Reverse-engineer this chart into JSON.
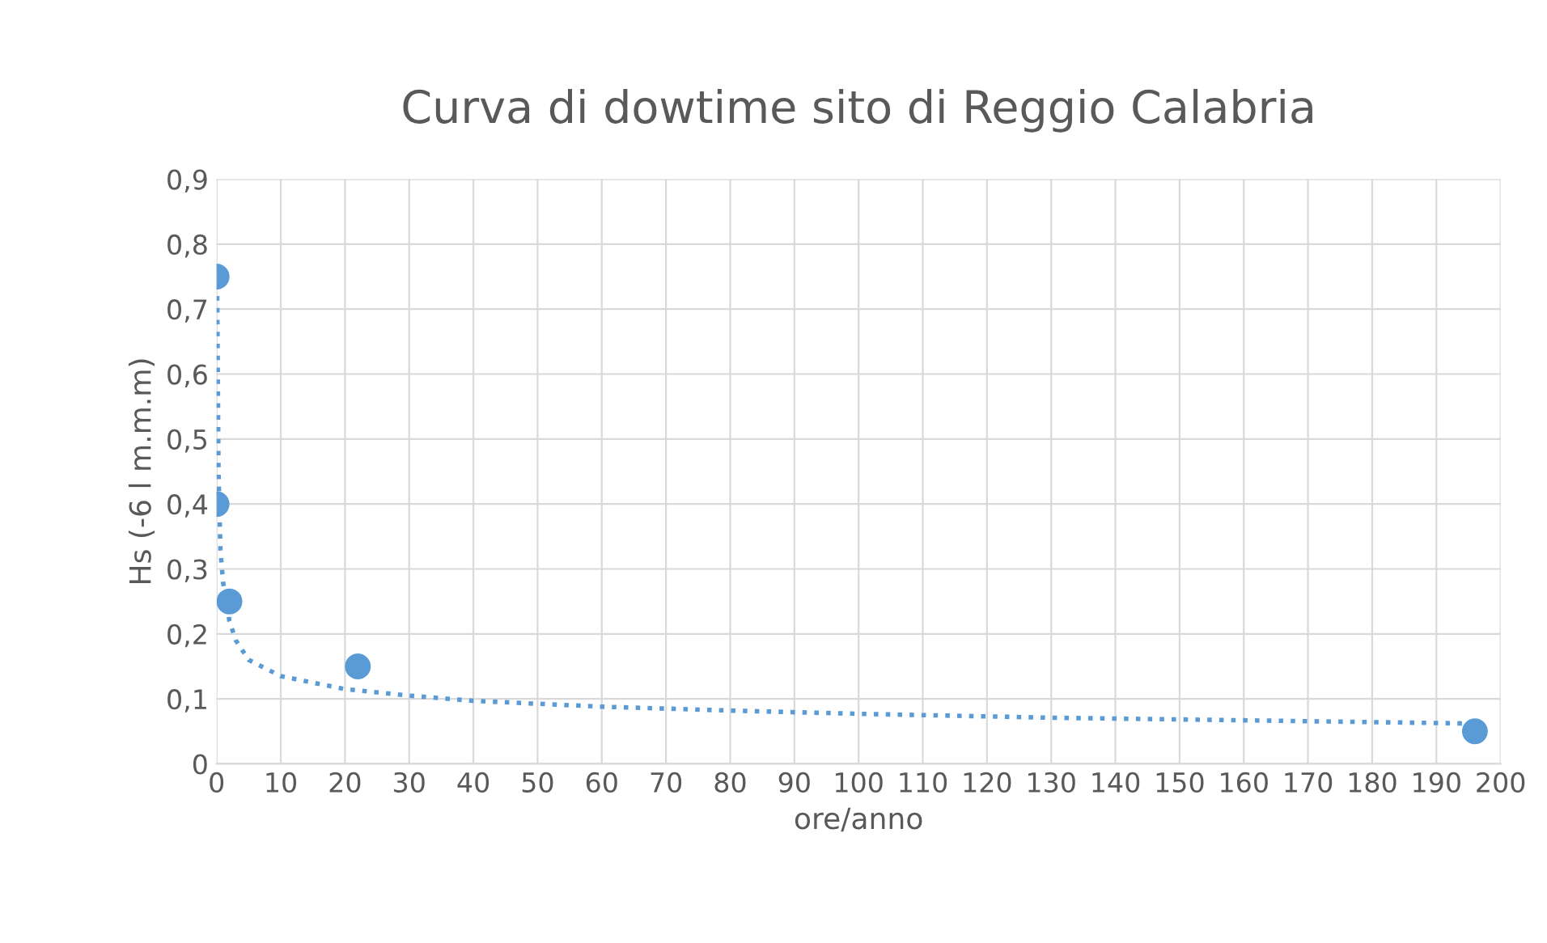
{
  "chart_data": {
    "type": "scatter",
    "title": "Curva di dowtime sito di Reggio Calabria",
    "xlabel": "ore/anno",
    "ylabel": "Hs (-6 l m.m.m)",
    "x": [
      0,
      0,
      2,
      22,
      196
    ],
    "series": [
      {
        "color": "#5b9bd5",
        "marker": "circle",
        "values": [
          0.75,
          0.4,
          0.25,
          0.15,
          0.05
        ]
      },
      {
        "type": "line",
        "color": "#5b9bd5",
        "line_style": "dotted",
        "marker": "none",
        "x": [
          0.1,
          0.3,
          0.6,
          1,
          2,
          3,
          5,
          10,
          20,
          30,
          40,
          60,
          80,
          100,
          130,
          160,
          196
        ],
        "values": [
          0.72,
          0.45,
          0.33,
          0.28,
          0.22,
          0.19,
          0.16,
          0.135,
          0.115,
          0.105,
          0.097,
          0.088,
          0.082,
          0.077,
          0.071,
          0.067,
          0.062
        ]
      }
    ],
    "xlim": [
      0,
      200
    ],
    "xticks": [
      0,
      10,
      20,
      30,
      40,
      50,
      60,
      70,
      80,
      90,
      100,
      110,
      120,
      130,
      140,
      150,
      160,
      170,
      180,
      190,
      200
    ],
    "ylim": [
      0,
      0.9
    ],
    "yticks": [
      0,
      {
        "value": 0.1,
        "label": "0,1"
      },
      {
        "value": 0.2,
        "label": "0,2"
      },
      {
        "value": 0.3,
        "label": "0,3"
      },
      {
        "value": 0.4,
        "label": "0,4"
      },
      {
        "value": 0.5,
        "label": "0,5"
      },
      {
        "value": 0.6,
        "label": "0,6"
      },
      {
        "value": 0.7,
        "label": "0,7"
      },
      {
        "value": 0.8,
        "label": "0,8"
      },
      {
        "value": 0.9,
        "label": "0,9"
      }
    ],
    "grid": true,
    "legend": false
  }
}
